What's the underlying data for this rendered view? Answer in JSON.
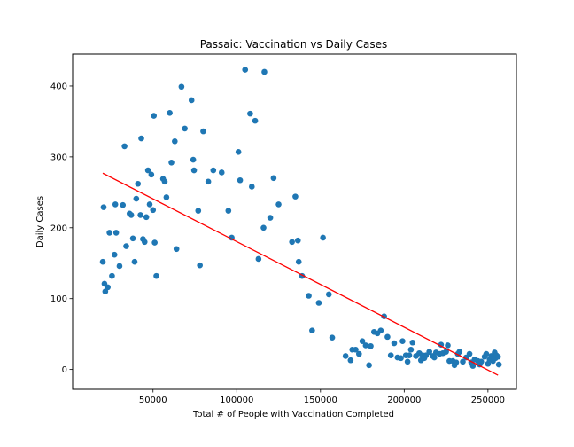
{
  "chart_data": {
    "type": "scatter",
    "title": "Passaic: Vaccination vs Daily Cases",
    "xlabel": "Total # of People with Vaccination Completed",
    "ylabel": "Daily Cases",
    "xlim": [
      2000,
      267000
    ],
    "ylim": [
      -28,
      445
    ],
    "xticks": [
      50000,
      100000,
      150000,
      200000,
      250000
    ],
    "xtick_labels": [
      "50000",
      "100000",
      "150000",
      "200000",
      "250000"
    ],
    "yticks": [
      0,
      100,
      200,
      300,
      400
    ],
    "ytick_labels": [
      "0",
      "100",
      "200",
      "300",
      "400"
    ],
    "grid": false,
    "point_color": "#1f77b4",
    "trend_color": "#ff0000",
    "trendline": {
      "x": [
        20000,
        256000
      ],
      "y": [
        277,
        -8
      ]
    },
    "points": [
      [
        20000,
        152
      ],
      [
        20500,
        229
      ],
      [
        21000,
        121
      ],
      [
        21500,
        110
      ],
      [
        23000,
        116
      ],
      [
        24000,
        193
      ],
      [
        25500,
        132
      ],
      [
        27000,
        162
      ],
      [
        27500,
        233
      ],
      [
        28000,
        193
      ],
      [
        30000,
        146
      ],
      [
        32000,
        232
      ],
      [
        33000,
        315
      ],
      [
        34000,
        174
      ],
      [
        36000,
        220
      ],
      [
        37000,
        218
      ],
      [
        38000,
        185
      ],
      [
        39000,
        152
      ],
      [
        40000,
        241
      ],
      [
        41000,
        262
      ],
      [
        42500,
        218
      ],
      [
        43000,
        326
      ],
      [
        44000,
        184
      ],
      [
        45000,
        180
      ],
      [
        46000,
        215
      ],
      [
        47000,
        281
      ],
      [
        48000,
        233
      ],
      [
        49000,
        275
      ],
      [
        50000,
        225
      ],
      [
        50500,
        358
      ],
      [
        51000,
        179
      ],
      [
        52000,
        132
      ],
      [
        56000,
        269
      ],
      [
        57000,
        265
      ],
      [
        58000,
        243
      ],
      [
        60000,
        362
      ],
      [
        61000,
        292
      ],
      [
        63000,
        322
      ],
      [
        64000,
        170
      ],
      [
        67000,
        399
      ],
      [
        69000,
        340
      ],
      [
        73000,
        380
      ],
      [
        74000,
        296
      ],
      [
        74500,
        281
      ],
      [
        77000,
        224
      ],
      [
        78000,
        147
      ],
      [
        80000,
        336
      ],
      [
        83000,
        265
      ],
      [
        86000,
        281
      ],
      [
        91000,
        278
      ],
      [
        95000,
        224
      ],
      [
        97000,
        186
      ],
      [
        101000,
        307
      ],
      [
        102000,
        267
      ],
      [
        105000,
        423
      ],
      [
        108000,
        361
      ],
      [
        109000,
        258
      ],
      [
        111000,
        351
      ],
      [
        113000,
        156
      ],
      [
        116000,
        200
      ],
      [
        116500,
        420
      ],
      [
        120000,
        214
      ],
      [
        122000,
        270
      ],
      [
        125000,
        233
      ],
      [
        133000,
        180
      ],
      [
        135000,
        244
      ],
      [
        136500,
        182
      ],
      [
        137000,
        152
      ],
      [
        139000,
        132
      ],
      [
        143000,
        104
      ],
      [
        145000,
        55
      ],
      [
        149000,
        94
      ],
      [
        151500,
        186
      ],
      [
        155000,
        106
      ],
      [
        157000,
        45
      ],
      [
        165000,
        19
      ],
      [
        168000,
        13
      ],
      [
        169000,
        28
      ],
      [
        171000,
        28
      ],
      [
        173000,
        22
      ],
      [
        175000,
        40
      ],
      [
        177000,
        34
      ],
      [
        179000,
        6
      ],
      [
        180000,
        33
      ],
      [
        182000,
        53
      ],
      [
        184000,
        51
      ],
      [
        186000,
        55
      ],
      [
        188000,
        75
      ],
      [
        190000,
        46
      ],
      [
        192000,
        20
      ],
      [
        194000,
        37
      ],
      [
        196000,
        17
      ],
      [
        198000,
        16
      ],
      [
        199000,
        40
      ],
      [
        201000,
        20
      ],
      [
        202000,
        11
      ],
      [
        203000,
        20
      ],
      [
        204000,
        28
      ],
      [
        205000,
        38
      ],
      [
        207000,
        19
      ],
      [
        209000,
        23
      ],
      [
        210000,
        13
      ],
      [
        211000,
        20
      ],
      [
        212000,
        16
      ],
      [
        213000,
        20
      ],
      [
        215000,
        25
      ],
      [
        217000,
        19
      ],
      [
        218000,
        17
      ],
      [
        219000,
        24
      ],
      [
        221000,
        22
      ],
      [
        222000,
        35
      ],
      [
        223000,
        23
      ],
      [
        225000,
        25
      ],
      [
        226000,
        34
      ],
      [
        227000,
        12
      ],
      [
        229000,
        12
      ],
      [
        230000,
        6
      ],
      [
        231000,
        10
      ],
      [
        232000,
        22
      ],
      [
        233000,
        25
      ],
      [
        235000,
        11
      ],
      [
        237000,
        17
      ],
      [
        239000,
        22
      ],
      [
        240000,
        10
      ],
      [
        241000,
        5
      ],
      [
        242000,
        14
      ],
      [
        244000,
        12
      ],
      [
        245000,
        7
      ],
      [
        246000,
        11
      ],
      [
        248000,
        18
      ],
      [
        249000,
        22
      ],
      [
        250000,
        8
      ],
      [
        251000,
        14
      ],
      [
        252000,
        19
      ],
      [
        253000,
        12
      ],
      [
        254000,
        24
      ],
      [
        254500,
        16
      ],
      [
        255000,
        20
      ],
      [
        256000,
        18
      ],
      [
        256500,
        7
      ]
    ]
  }
}
